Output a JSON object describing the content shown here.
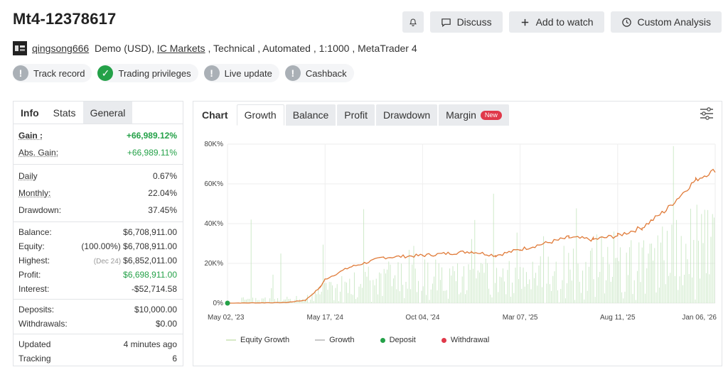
{
  "header": {
    "title": "Mt4-12378617",
    "buttons": {
      "discuss": "Discuss",
      "add_to_watch": "Add to watch",
      "custom_analysis": "Custom Analysis"
    }
  },
  "account": {
    "username": "qingsong666",
    "type": "Demo (USD),",
    "broker": "IC Markets",
    "details": " , Technical , Automated , 1:1000 , MetaTrader 4"
  },
  "badges": [
    {
      "label": "Track record",
      "status": "!"
    },
    {
      "label": "Trading privileges",
      "status": "✓"
    },
    {
      "label": "Live update",
      "status": "!"
    },
    {
      "label": "Cashback",
      "status": "!"
    }
  ],
  "stats": {
    "tabs": [
      "Info",
      "Stats",
      "General"
    ],
    "gain_label": "Gain :",
    "gain": "+66,989.12%",
    "abs_gain_label": "Abs. Gain:",
    "abs_gain": "+66,989.11%",
    "daily_label": "Daily",
    "daily": "0.67%",
    "monthly_label": "Monthly:",
    "monthly": "22.04%",
    "drawdown_label": "Drawdown:",
    "drawdown": "37.45%",
    "balance_label": "Balance:",
    "balance": "$6,708,911.00",
    "equity_label": "Equity:",
    "equity_pct": "(100.00%)",
    "equity": "$6,708,911.00",
    "highest_label": "Highest:",
    "highest_date": "(Dec 24)",
    "highest": "$6,852,011.00",
    "profit_label": "Profit:",
    "profit": "$6,698,911.00",
    "interest_label": "Interest:",
    "interest": "-$52,714.58",
    "deposits_label": "Deposits:",
    "deposits": "$10,000.00",
    "withdrawals_label": "Withdrawals:",
    "withdrawals": "$0.00",
    "updated_label": "Updated",
    "updated": "4 minutes ago",
    "tracking_label": "Tracking",
    "tracking": "6"
  },
  "chart_tabs": {
    "chart": "Chart",
    "growth": "Growth",
    "balance": "Balance",
    "profit": "Profit",
    "drawdown": "Drawdown",
    "margin": "Margin",
    "new": "New"
  },
  "legend": {
    "equity_growth": "Equity Growth",
    "growth": "Growth",
    "deposit": "Deposit",
    "withdrawal": "Withdrawal"
  },
  "colors": {
    "growth_line": "#e07b39",
    "equity_bars": "#b7dfb0",
    "deposit": "#24a148",
    "withdrawal": "#e0394a",
    "accent_green": "#24a148"
  },
  "chart_data": {
    "type": "line",
    "x_ticks": [
      "May 02, '23",
      "May 17, '24",
      "Oct 04, '24",
      "Mar 07, '25",
      "Aug 11, '25",
      "Jan 06, '26"
    ],
    "y_ticks": [
      "0%",
      "20K%",
      "40K%",
      "60K%",
      "80K%"
    ],
    "ylim": [
      0,
      80000
    ],
    "x": [
      "May 02, '23",
      "Nov 2023",
      "Jan 2024",
      "Mar 2024",
      "May 17, '24",
      "Jul 2024",
      "Aug 2024",
      "Oct 04, '24",
      "Dec 2024",
      "Jan 2025",
      "Mar 07, '25",
      "May 2025",
      "Jun 2025",
      "Aug 11, '25",
      "Oct 2025",
      "Nov 2025",
      "Dec 2025",
      "Jan 06, '26"
    ],
    "series": [
      {
        "name": "Growth",
        "values": [
          0,
          300,
          1500,
          8000,
          12000,
          18000,
          23000,
          24000,
          26000,
          24000,
          27000,
          33000,
          32000,
          34000,
          38000,
          47000,
          62000,
          67000
        ]
      }
    ],
    "deposit_points": [
      {
        "x": "May 02, '23",
        "y": 0
      }
    ],
    "legend_position": "bottom",
    "grid": true
  }
}
